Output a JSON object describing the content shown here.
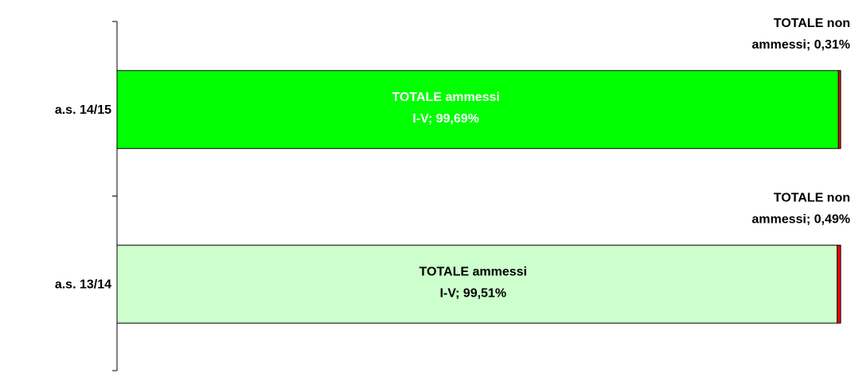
{
  "chart_data": {
    "type": "stacked-bar-100",
    "categories": [
      "a.s. 14/15",
      "a.s. 13/14"
    ],
    "series": [
      {
        "colors": [
          "#00ff00",
          "#ccffcc"
        ],
        "label_colors": [
          "#ffffff",
          "#000000"
        ],
        "values": [
          99.69,
          99.51
        ],
        "value_labels": [
          [
            "TOTALE ammessi",
            "I-V; 99,69%"
          ],
          [
            "TOTALE ammessi",
            "I-V; 99,51%"
          ]
        ]
      },
      {
        "colors": [
          "#ff0000",
          "#ff0000"
        ],
        "label_colors": [
          "#000000",
          "#000000"
        ],
        "values": [
          0.31,
          0.49
        ],
        "value_labels": [
          [
            "TOTALE non",
            "ammessi; 0,31%"
          ],
          [
            "TOTALE non",
            "ammessi; 0,49%"
          ]
        ]
      }
    ]
  }
}
